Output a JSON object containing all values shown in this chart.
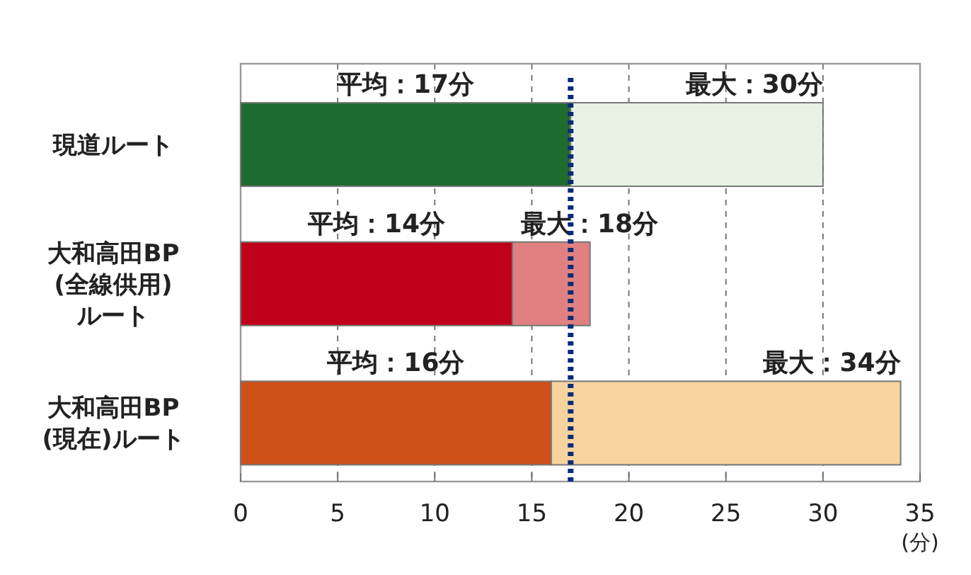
{
  "chart_data": {
    "type": "bar",
    "orientation": "horizontal",
    "stacked": true,
    "categories": [
      "現道ルート",
      "大和高田BP\n(全線供用)\nルート",
      "大和高田BP\n(現在)ルート"
    ],
    "series": [
      {
        "colors": [
          "#1e6b30",
          "#c0001a",
          "#d0501a"
        ],
        "values": [
          17,
          14,
          16
        ],
        "value_labels": [
          "平均：17分",
          "平均：14分",
          "平均：16分"
        ]
      },
      {
        "colors": [
          "#e8f3e6",
          "#e08080",
          "#f7d3a0"
        ],
        "values": [
          13,
          4,
          18
        ]
      }
    ],
    "annotations": [
      {
        "text": "最大：30分",
        "x": 30,
        "y": "現道ルート"
      },
      {
        "text": "最大：18分",
        "x": 18,
        "y": "大和高田BP\n(全線供用)\nルート"
      },
      {
        "text": "最大：34分",
        "x": 34,
        "y": "大和高田BP\n(現在)ルート"
      }
    ],
    "xlim": [
      0,
      35
    ],
    "xticks": [
      0,
      5,
      10,
      15,
      20,
      25,
      30,
      35
    ],
    "xlabel": "(分)",
    "grid": "x",
    "ref_lines": [
      {
        "axis": "x",
        "value": 17,
        "color": "#0a2a7a",
        "line_style": "dotted"
      }
    ]
  }
}
